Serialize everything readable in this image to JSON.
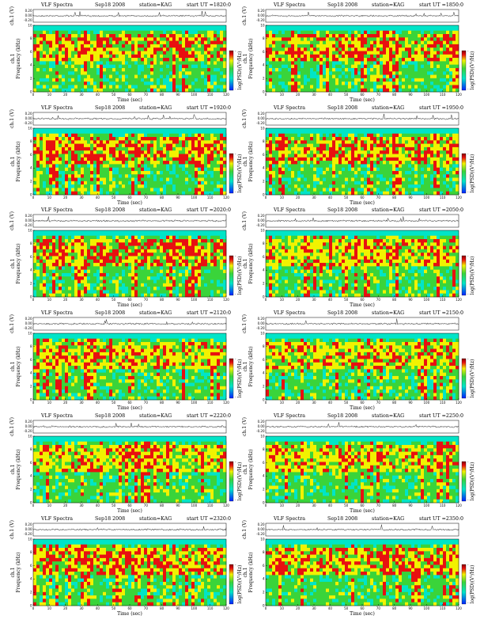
{
  "figure": {
    "title": "VLF Spectra",
    "date": "Sep18 2008",
    "station": "station=KAG",
    "start_prefix": "start",
    "ut_prefix": "UT =",
    "xlabel": "Time (sec)",
    "ylabel_top": "ch.1 (V)",
    "ylabel_spec": "ch.1",
    "ylabel_freq": "Frequency (kHz)",
    "colorbar_label": "log(PSD)(V²/Hz)",
    "colorbar_ticks": [
      "-",
      "-"
    ]
  },
  "colors": {
    "background": "#00e5c8",
    "green": "#3ad43a",
    "yellow": "#f2f200",
    "red": "#e81010",
    "blue": "#0020ff",
    "dark_red": "#8a0000"
  },
  "chart_data": [
    {
      "type": "heatmap",
      "ut": "1820:0",
      "xlim": [
        0,
        120
      ],
      "xticks": [
        0,
        10,
        20,
        30,
        40,
        50,
        60,
        70,
        80,
        90,
        100,
        110,
        120
      ],
      "ylim": [
        0,
        10
      ],
      "yticks": [
        0,
        2,
        4,
        6,
        8,
        10
      ],
      "ch1_ylim": [
        -0.2,
        0.2
      ],
      "ch1_ticks": [
        "0.20",
        "0.00",
        "-0.20"
      ],
      "intensity": "high"
    },
    {
      "type": "heatmap",
      "ut": "1850:0",
      "xlim": [
        0,
        120
      ],
      "xticks": [
        0,
        10,
        20,
        30,
        40,
        50,
        60,
        70,
        80,
        90,
        100,
        110,
        120
      ],
      "ylim": [
        0,
        10
      ],
      "yticks": [
        0,
        2,
        4,
        6,
        8,
        10
      ],
      "ch1_ylim": [
        -0.2,
        0.2
      ],
      "ch1_ticks": [
        "0.20",
        "0.00",
        "-0.20"
      ],
      "intensity": "high"
    },
    {
      "type": "heatmap",
      "ut": "1920:0",
      "xlim": [
        0,
        120
      ],
      "xticks": [
        0,
        10,
        20,
        30,
        40,
        50,
        60,
        70,
        80,
        90,
        100,
        110,
        120
      ],
      "ylim": [
        0,
        10
      ],
      "yticks": [
        0,
        2,
        4,
        6,
        8,
        10
      ],
      "ch1_ylim": [
        -0.2,
        0.2
      ],
      "ch1_ticks": [
        "0.20",
        "0.00",
        "-0.20"
      ],
      "intensity": "high"
    },
    {
      "type": "heatmap",
      "ut": "1950:0",
      "xlim": [
        0,
        120
      ],
      "xticks": [
        0,
        10,
        20,
        30,
        40,
        50,
        60,
        70,
        80,
        90,
        100,
        110,
        120
      ],
      "ylim": [
        0,
        10
      ],
      "yticks": [
        0,
        2,
        4,
        6,
        8,
        10
      ],
      "ch1_ylim": [
        -0.2,
        0.2
      ],
      "ch1_ticks": [
        "0.20",
        "0.00",
        "-0.20"
      ],
      "intensity": "high"
    },
    {
      "type": "heatmap",
      "ut": "2020:0",
      "xlim": [
        0,
        120
      ],
      "xticks": [
        0,
        10,
        20,
        30,
        40,
        50,
        60,
        70,
        80,
        90,
        100,
        110,
        120
      ],
      "ylim": [
        0,
        10
      ],
      "yticks": [
        0,
        2,
        4,
        6,
        8,
        10
      ],
      "ch1_ylim": [
        -0.2,
        0.2
      ],
      "ch1_ticks": [
        "0.20",
        "0.00",
        "-0.20"
      ],
      "intensity": "high"
    },
    {
      "type": "heatmap",
      "ut": "2050:0",
      "xlim": [
        0,
        120
      ],
      "xticks": [
        0,
        10,
        20,
        30,
        40,
        50,
        60,
        70,
        80,
        90,
        100,
        110,
        120
      ],
      "ylim": [
        0,
        10
      ],
      "yticks": [
        0,
        2,
        4,
        6,
        8,
        10
      ],
      "ch1_ylim": [
        -0.2,
        0.2
      ],
      "ch1_ticks": [
        "0.20",
        "0.00",
        "-0.20"
      ],
      "intensity": "medium"
    },
    {
      "type": "heatmap",
      "ut": "2120:0",
      "xlim": [
        0,
        120
      ],
      "xticks": [
        0,
        10,
        20,
        30,
        40,
        50,
        60,
        70,
        80,
        90,
        100,
        110,
        120
      ],
      "ylim": [
        0,
        10
      ],
      "yticks": [
        0,
        2,
        4,
        6,
        8,
        10
      ],
      "ch1_ylim": [
        -0.2,
        0.2
      ],
      "ch1_ticks": [
        "0.20",
        "0.00",
        "-0.20"
      ],
      "intensity": "medium"
    },
    {
      "type": "heatmap",
      "ut": "2150:0",
      "xlim": [
        0,
        120
      ],
      "xticks": [
        0,
        10,
        20,
        30,
        40,
        50,
        60,
        70,
        80,
        90,
        100,
        110,
        120
      ],
      "ylim": [
        0,
        10
      ],
      "yticks": [
        0,
        2,
        4,
        6,
        8,
        10
      ],
      "ch1_ylim": [
        -0.2,
        0.2
      ],
      "ch1_ticks": [
        "0.20",
        "0.00",
        "-0.20"
      ],
      "intensity": "medium"
    },
    {
      "type": "heatmap",
      "ut": "2220:0",
      "xlim": [
        0,
        120
      ],
      "xticks": [
        0,
        10,
        20,
        30,
        40,
        50,
        60,
        70,
        80,
        90,
        100,
        110,
        120
      ],
      "ylim": [
        0,
        10
      ],
      "yticks": [
        0,
        2,
        4,
        6,
        8,
        10
      ],
      "ch1_ylim": [
        -0.2,
        0.2
      ],
      "ch1_ticks": [
        "0.20",
        "0.00",
        "-0.20"
      ],
      "intensity": "medium"
    },
    {
      "type": "heatmap",
      "ut": "2250:0",
      "xlim": [
        0,
        120
      ],
      "xticks": [
        0,
        10,
        20,
        30,
        40,
        50,
        60,
        70,
        80,
        90,
        100,
        110,
        120
      ],
      "ylim": [
        0,
        10
      ],
      "yticks": [
        0,
        2,
        4,
        6,
        8,
        10
      ],
      "ch1_ylim": [
        -0.2,
        0.2
      ],
      "ch1_ticks": [
        "0.20",
        "0.00",
        "-0.20"
      ],
      "intensity": "medium"
    },
    {
      "type": "heatmap",
      "ut": "2320:0",
      "xlim": [
        0,
        120
      ],
      "xticks": [
        0,
        10,
        20,
        30,
        40,
        50,
        60,
        70,
        80,
        90,
        100,
        110,
        120
      ],
      "ylim": [
        0,
        10
      ],
      "yticks": [
        0,
        2,
        4,
        6,
        8,
        10
      ],
      "ch1_ylim": [
        -0.2,
        0.2
      ],
      "ch1_ticks": [
        "0.20",
        "0.00",
        "-0.20"
      ],
      "intensity": "high"
    },
    {
      "type": "heatmap",
      "ut": "2350:0",
      "xlim": [
        0,
        120
      ],
      "xticks": [
        0,
        10,
        20,
        30,
        40,
        50,
        60,
        70,
        80,
        90,
        100,
        110,
        120
      ],
      "ylim": [
        0,
        10
      ],
      "yticks": [
        0,
        2,
        4,
        6,
        8,
        10
      ],
      "ch1_ylim": [
        -0.2,
        0.2
      ],
      "ch1_ticks": [
        "0.20",
        "0.00",
        "-0.20"
      ],
      "intensity": "high"
    }
  ]
}
